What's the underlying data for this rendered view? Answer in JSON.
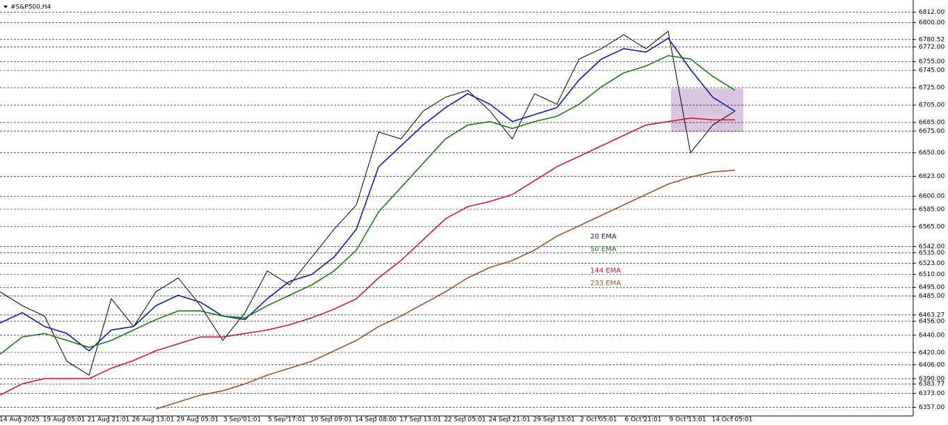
{
  "chart_data": {
    "type": "line",
    "title": "#S&P500,H4",
    "x": [
      0,
      8,
      16,
      24,
      32,
      40,
      48,
      56,
      64,
      72,
      80,
      88,
      96,
      104,
      112,
      120,
      128,
      136,
      144,
      152,
      160,
      168,
      176,
      184,
      192,
      200,
      208,
      216,
      224,
      232,
      240,
      248,
      256,
      264
    ],
    "xlim": [
      0,
      328
    ],
    "xticks": [
      {
        "value": 7,
        "label": "14 Aug 2025"
      },
      {
        "value": 23,
        "label": "19 Aug 05:01"
      },
      {
        "value": 39,
        "label": "21 Aug 21:01"
      },
      {
        "value": 55,
        "label": "26 Aug 13:01"
      },
      {
        "value": 71,
        "label": "29 Aug 05:01"
      },
      {
        "value": 87,
        "label": "3 Sep 01:01"
      },
      {
        "value": 103,
        "label": "5 Sep 17:01"
      },
      {
        "value": 119,
        "label": "10 Sep 09:01"
      },
      {
        "value": 135,
        "label": "14 Sep 08:00"
      },
      {
        "value": 151,
        "label": "17 Sep 13:01"
      },
      {
        "value": 167,
        "label": "22 Sep 05:01"
      },
      {
        "value": 183,
        "label": "24 Sep 21:01"
      },
      {
        "value": 199,
        "label": "29 Sep 13:01"
      },
      {
        "value": 215,
        "label": "2 Oct 05:01"
      },
      {
        "value": 231,
        "label": "6 Oct 21:01"
      },
      {
        "value": 247,
        "label": "9 Oct 13:01"
      },
      {
        "value": 263,
        "label": "14 Oct 05:01"
      }
    ],
    "ylim": [
      6347,
      6826
    ],
    "yticks": [
      {
        "value": 6812,
        "label": "6812.00"
      },
      {
        "value": 6800,
        "label": "6800.00"
      },
      {
        "value": 6780.52,
        "label": "6780.52"
      },
      {
        "value": 6772,
        "label": "6772.00"
      },
      {
        "value": 6755,
        "label": "6755.00"
      },
      {
        "value": 6745,
        "label": "6745.00"
      },
      {
        "value": 6725,
        "label": "6725.00"
      },
      {
        "value": 6705,
        "label": "6705.00"
      },
      {
        "value": 6685,
        "label": "6685.00"
      },
      {
        "value": 6675,
        "label": "6675.00"
      },
      {
        "value": 6650,
        "label": "6650.00"
      },
      {
        "value": 6623,
        "label": "6623.00"
      },
      {
        "value": 6600,
        "label": "6600.00"
      },
      {
        "value": 6585,
        "label": "6585.00"
      },
      {
        "value": 6565,
        "label": "6565.00"
      },
      {
        "value": 6542,
        "label": "6542.00"
      },
      {
        "value": 6535,
        "label": "6535.00"
      },
      {
        "value": 6523,
        "label": "6523.00"
      },
      {
        "value": 6510,
        "label": "6510.00"
      },
      {
        "value": 6495,
        "label": "6495.00"
      },
      {
        "value": 6485,
        "label": "6485.00"
      },
      {
        "value": 6463.27,
        "label": "6463.27"
      },
      {
        "value": 6456,
        "label": "6456.00"
      },
      {
        "value": 6440,
        "label": "6440.00"
      },
      {
        "value": 6420,
        "label": "6420.00"
      },
      {
        "value": 6406,
        "label": "6406.00"
      },
      {
        "value": 6390,
        "label": "6390.00"
      },
      {
        "value": 6383.77,
        "label": "6383.77"
      },
      {
        "value": 6373,
        "label": "6373.00"
      },
      {
        "value": 6357,
        "label": "6357.00"
      }
    ],
    "grid": true,
    "highlight": {
      "xlim": [
        241,
        267
      ],
      "ylim": [
        6674,
        6724
      ],
      "color": "#d4bcd8"
    },
    "series": [
      {
        "color": "#000000",
        "values": [
          6490,
          6474,
          6462,
          6410,
          6394,
          6482,
          6450,
          6490,
          6506,
          6474,
          6434,
          6466,
          6514,
          6498,
          6530,
          6562,
          6590,
          6674,
          6666,
          6698,
          6714,
          6722,
          6698,
          6666,
          6718,
          6706,
          6758,
          6770,
          6786,
          6770,
          6790,
          6650,
          6682,
          6698
        ]
      },
      {
        "name": "20 EMA",
        "color": "#0a1fa8",
        "values": [
          6454,
          6466,
          6450,
          6442,
          6422,
          6446,
          6450,
          6474,
          6486,
          6478,
          6462,
          6458,
          6482,
          6502,
          6510,
          6530,
          6562,
          6634,
          6658,
          6682,
          6702,
          6718,
          6706,
          6686,
          6694,
          6702,
          6734,
          6758,
          6770,
          6766,
          6782,
          6746,
          6714,
          6698
        ]
      },
      {
        "name": "50 EMA",
        "color": "#1a7a1a",
        "values": [
          6418,
          6438,
          6442,
          6434,
          6426,
          6434,
          6446,
          6458,
          6468,
          6468,
          6462,
          6460,
          6474,
          6486,
          6498,
          6514,
          6538,
          6582,
          6610,
          6638,
          6666,
          6682,
          6686,
          6678,
          6686,
          6692,
          6706,
          6726,
          6742,
          6750,
          6762,
          6758,
          6738,
          6722
        ]
      },
      {
        "name": "144 EMA",
        "color": "#d0163c",
        "values": [
          6371,
          6384,
          6390,
          6390,
          6390,
          6402,
          6411,
          6422,
          6430,
          6438,
          6438,
          6442,
          6446,
          6452,
          6460,
          6470,
          6482,
          6506,
          6526,
          6550,
          6574,
          6588,
          6594,
          6602,
          6618,
          6634,
          6646,
          6658,
          6670,
          6682,
          6686,
          6690,
          6688,
          6688
        ]
      },
      {
        "name": "233 EMA",
        "color": "#a0522d",
        "values": [
          null,
          null,
          null,
          null,
          null,
          null,
          null,
          6355,
          6363,
          6371,
          6376,
          6384,
          6394,
          6402,
          6410,
          6422,
          6434,
          6450,
          6462,
          6476,
          6490,
          6506,
          6518,
          6526,
          6538,
          6554,
          6566,
          6578,
          6590,
          6602,
          6614,
          6622,
          6628,
          6630
        ]
      }
    ]
  }
}
